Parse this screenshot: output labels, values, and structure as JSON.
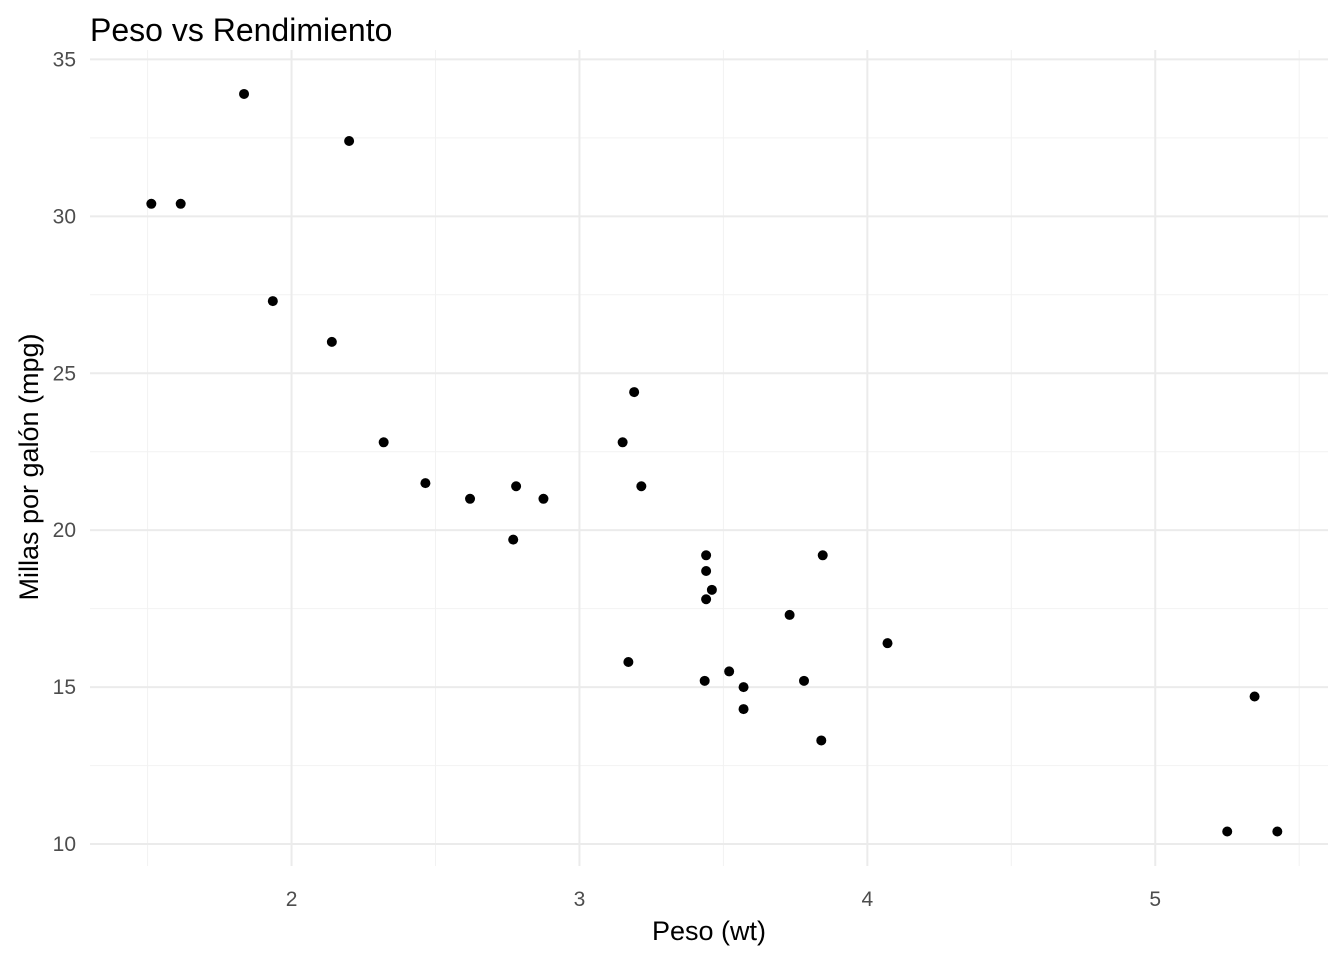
{
  "chart_data": {
    "type": "scatter",
    "title": "Peso vs Rendimiento",
    "xlabel": "Peso (wt)",
    "ylabel": "Millas por galón (mpg)",
    "xlim": [
      1.3,
      5.6
    ],
    "ylim": [
      9.3,
      35.3
    ],
    "x_major_ticks": [
      2,
      3,
      4,
      5
    ],
    "x_minor_ticks": [
      1.5,
      2.5,
      3.5,
      4.5,
      5.5
    ],
    "y_major_ticks": [
      10,
      15,
      20,
      25,
      30,
      35
    ],
    "y_minor_ticks": [
      12.5,
      17.5,
      22.5,
      27.5,
      32.5
    ],
    "x_tick_labels": [
      "2",
      "3",
      "4",
      "5"
    ],
    "y_tick_labels": [
      "10",
      "15",
      "20",
      "25",
      "30",
      "35"
    ],
    "grid": true,
    "point_color": "#000000",
    "points": [
      {
        "x": 2.62,
        "y": 21.0
      },
      {
        "x": 2.875,
        "y": 21.0
      },
      {
        "x": 2.32,
        "y": 22.8
      },
      {
        "x": 3.215,
        "y": 21.4
      },
      {
        "x": 3.44,
        "y": 18.7
      },
      {
        "x": 3.46,
        "y": 18.1
      },
      {
        "x": 3.57,
        "y": 14.3
      },
      {
        "x": 3.19,
        "y": 24.4
      },
      {
        "x": 3.15,
        "y": 22.8
      },
      {
        "x": 3.44,
        "y": 19.2
      },
      {
        "x": 3.44,
        "y": 17.8
      },
      {
        "x": 4.07,
        "y": 16.4
      },
      {
        "x": 3.73,
        "y": 17.3
      },
      {
        "x": 3.78,
        "y": 15.2
      },
      {
        "x": 5.25,
        "y": 10.4
      },
      {
        "x": 5.424,
        "y": 10.4
      },
      {
        "x": 5.345,
        "y": 14.7
      },
      {
        "x": 2.2,
        "y": 32.4
      },
      {
        "x": 1.615,
        "y": 30.4
      },
      {
        "x": 1.835,
        "y": 33.9
      },
      {
        "x": 2.465,
        "y": 21.5
      },
      {
        "x": 3.52,
        "y": 15.5
      },
      {
        "x": 3.435,
        "y": 15.2
      },
      {
        "x": 3.84,
        "y": 13.3
      },
      {
        "x": 3.845,
        "y": 19.2
      },
      {
        "x": 1.935,
        "y": 27.3
      },
      {
        "x": 2.14,
        "y": 26.0
      },
      {
        "x": 1.513,
        "y": 30.4
      },
      {
        "x": 3.17,
        "y": 15.8
      },
      {
        "x": 2.77,
        "y": 19.7
      },
      {
        "x": 3.57,
        "y": 15.0
      },
      {
        "x": 2.78,
        "y": 21.4
      }
    ]
  }
}
